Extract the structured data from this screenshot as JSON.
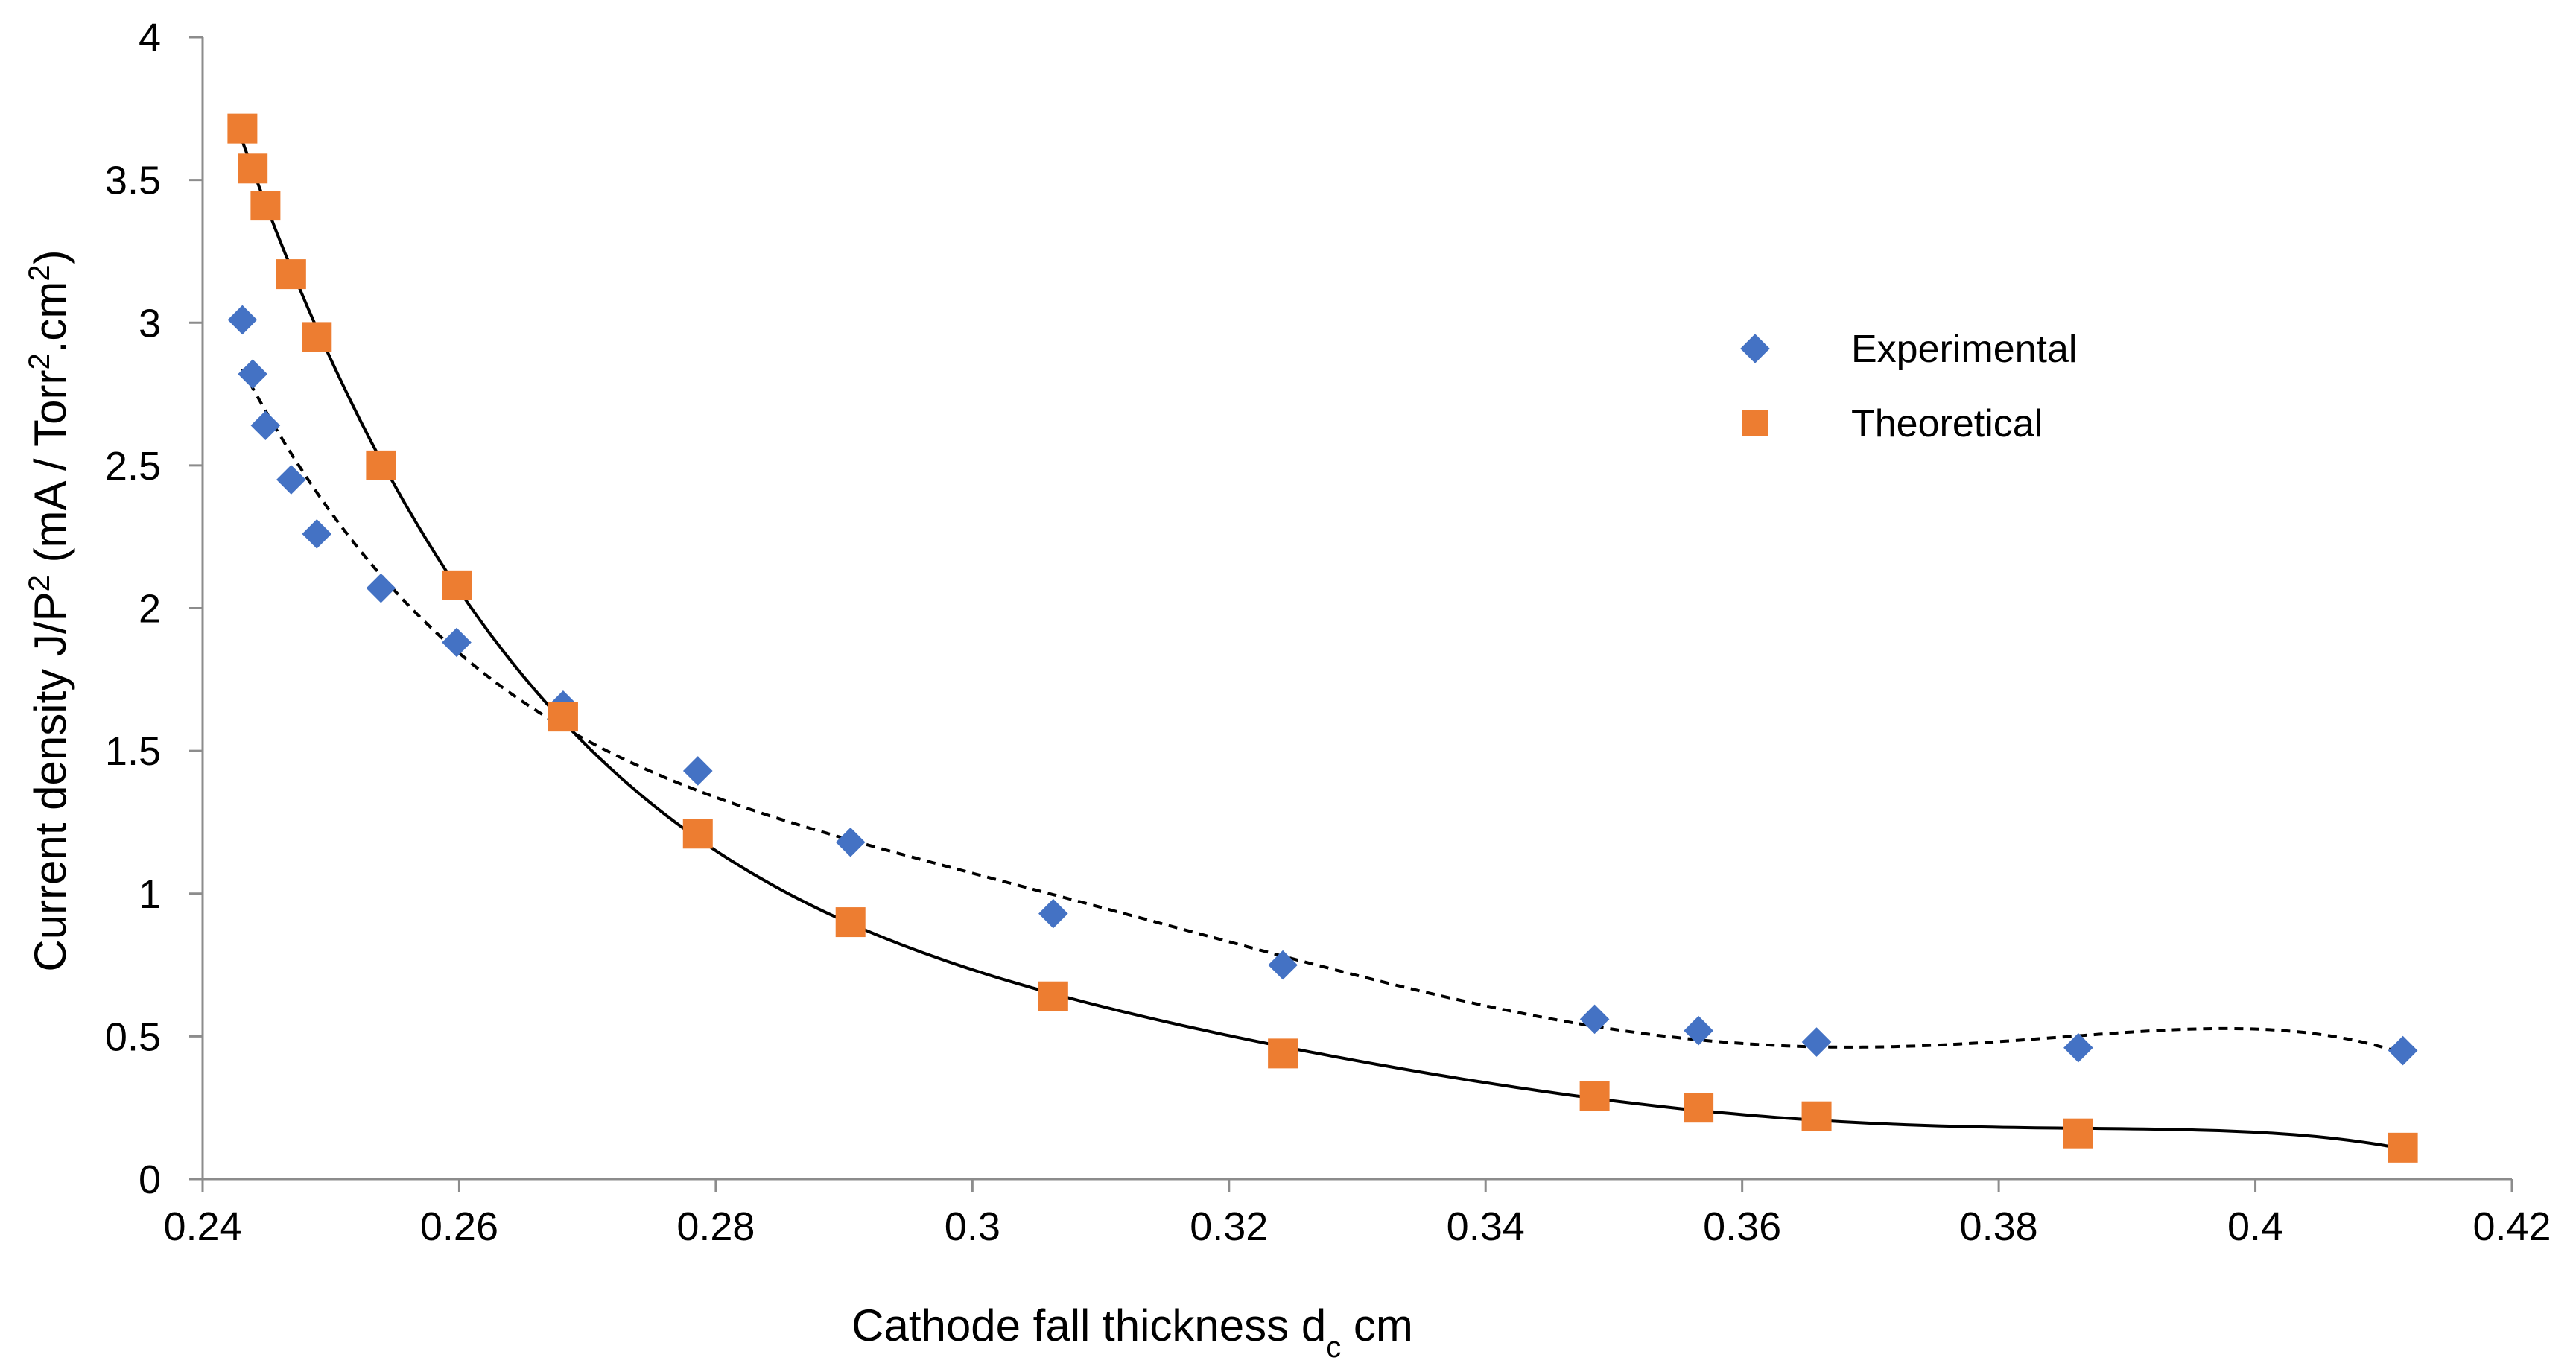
{
  "chart_data": {
    "type": "scatter",
    "title": "",
    "xlabel_main": "Cathode fall thickness d",
    "xlabel_sub": "c",
    "xlabel_unit": " cm",
    "ylabel_prefix": "Current density  J/P",
    "ylabel_mid": " (mA / Torr",
    "ylabel_mid2": ".cm",
    "ylabel_end": ")",
    "ylabel_sup": "2",
    "xlim": [
      0.24,
      0.42
    ],
    "ylim": [
      0,
      4
    ],
    "x_ticks": [
      "0.24",
      "0.26",
      "0.28",
      "0.3",
      "0.32",
      "0.34",
      "0.36",
      "0.38",
      "0.4",
      "0.42"
    ],
    "y_ticks": [
      "0",
      "0.5",
      "1",
      "1.5",
      "2",
      "2.5",
      "3",
      "3.5",
      "4"
    ],
    "legend_position": "right",
    "series": [
      {
        "name": "Experimental",
        "marker": "diamond",
        "color": "#4472C4",
        "trendline": "dashed",
        "x": [
          0.2431,
          0.2439,
          0.2449,
          0.2469,
          0.2489,
          0.2539,
          0.2598,
          0.2681,
          0.2786,
          0.2905,
          0.3063,
          0.3242,
          0.3485,
          0.3566,
          0.3658,
          0.3862,
          0.4115
        ],
        "y": [
          3.01,
          2.82,
          2.64,
          2.45,
          2.26,
          2.07,
          1.88,
          1.66,
          1.43,
          1.18,
          0.93,
          0.75,
          0.56,
          0.52,
          0.48,
          0.46,
          0.45
        ]
      },
      {
        "name": "Theoretical",
        "marker": "square",
        "color": "#ED7D31",
        "trendline": "solid",
        "x": [
          0.2431,
          0.2439,
          0.2449,
          0.2469,
          0.2489,
          0.2539,
          0.2598,
          0.2681,
          0.2786,
          0.2905,
          0.3063,
          0.3242,
          0.3485,
          0.3566,
          0.3658,
          0.3862,
          0.4115
        ],
        "y": [
          3.68,
          3.54,
          3.41,
          3.17,
          2.95,
          2.5,
          2.08,
          1.62,
          1.21,
          0.9,
          0.64,
          0.44,
          0.29,
          0.25,
          0.22,
          0.16,
          0.11
        ]
      }
    ]
  }
}
